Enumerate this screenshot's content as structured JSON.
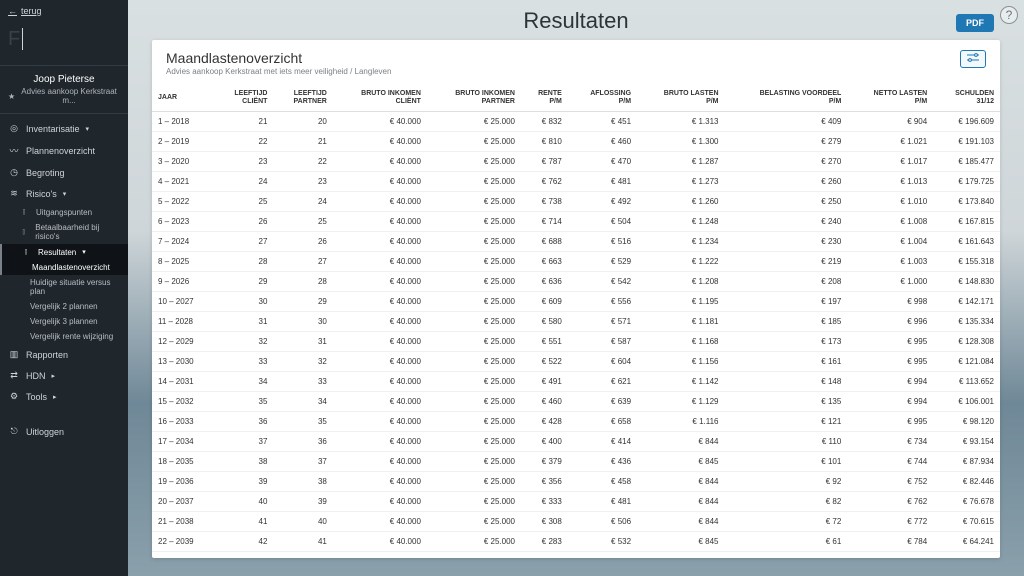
{
  "page": {
    "title": "Resultaten"
  },
  "buttons": {
    "back": "terug",
    "pdf": "PDF",
    "help": "?"
  },
  "client": {
    "name": "Joop Pieterse",
    "subtitle": "Advies aankoop Kerkstraat m..."
  },
  "sidebar": {
    "items": [
      {
        "label": "Inventarisatie",
        "icon": "◎",
        "caret": true
      },
      {
        "label": "Plannenoverzicht",
        "icon": "〰"
      },
      {
        "label": "Begroting",
        "icon": "◷"
      },
      {
        "label": "Risico's",
        "icon": "≋",
        "caret": true
      }
    ],
    "risicoSub": [
      {
        "label": "Uitgangspunten"
      },
      {
        "label": "Betaalbaarheid bij risico's"
      },
      {
        "label": "Resultaten",
        "active": true,
        "caret": true
      }
    ],
    "resultatenSub": [
      {
        "label": "Maandlastenoverzicht",
        "active": true
      },
      {
        "label": "Huidige situatie versus plan"
      },
      {
        "label": "Vergelijk 2 plannen"
      },
      {
        "label": "Vergelijk 3 plannen"
      },
      {
        "label": "Vergelijk rente wijziging"
      }
    ],
    "bottom": [
      {
        "label": "Rapporten",
        "icon": "▥"
      },
      {
        "label": "HDN",
        "icon": "⇄",
        "caret": true
      },
      {
        "label": "Tools",
        "icon": "⚙",
        "caret": true
      }
    ],
    "logout": {
      "label": "Uitloggen",
      "icon": "⎋"
    }
  },
  "panel": {
    "title": "Maandlastenoverzicht",
    "subtitle": "Advies aankoop Kerkstraat met iets meer veiligheid / Langleven",
    "actionIcon": "sliders"
  },
  "table": {
    "columns": [
      "JAAR",
      "LEEFTIJD CLIËNT",
      "LEEFTIJD PARTNER",
      "BRUTO INKOMEN CLIËNT",
      "BRUTO INKOMEN PARTNER",
      "RENTE P/M",
      "AFLOSSING P/M",
      "BRUTO LASTEN P/M",
      "BELASTING VOORDEEL P/M",
      "NETTO LASTEN P/M",
      "SCHULDEN 31/12"
    ],
    "rows": [
      [
        "1 – 2018",
        "21",
        "20",
        "€ 40.000",
        "€ 25.000",
        "€ 832",
        "€ 451",
        "€ 1.313",
        "€ 409",
        "€ 904",
        "€ 196.609"
      ],
      [
        "2 – 2019",
        "22",
        "21",
        "€ 40.000",
        "€ 25.000",
        "€ 810",
        "€ 460",
        "€ 1.300",
        "€ 279",
        "€ 1.021",
        "€ 191.103"
      ],
      [
        "3 – 2020",
        "23",
        "22",
        "€ 40.000",
        "€ 25.000",
        "€ 787",
        "€ 470",
        "€ 1.287",
        "€ 270",
        "€ 1.017",
        "€ 185.477"
      ],
      [
        "4 – 2021",
        "24",
        "23",
        "€ 40.000",
        "€ 25.000",
        "€ 762",
        "€ 481",
        "€ 1.273",
        "€ 260",
        "€ 1.013",
        "€ 179.725"
      ],
      [
        "5 – 2022",
        "25",
        "24",
        "€ 40.000",
        "€ 25.000",
        "€ 738",
        "€ 492",
        "€ 1.260",
        "€ 250",
        "€ 1.010",
        "€ 173.840"
      ],
      [
        "6 – 2023",
        "26",
        "25",
        "€ 40.000",
        "€ 25.000",
        "€ 714",
        "€ 504",
        "€ 1.248",
        "€ 240",
        "€ 1.008",
        "€ 167.815"
      ],
      [
        "7 – 2024",
        "27",
        "26",
        "€ 40.000",
        "€ 25.000",
        "€ 688",
        "€ 516",
        "€ 1.234",
        "€ 230",
        "€ 1.004",
        "€ 161.643"
      ],
      [
        "8 – 2025",
        "28",
        "27",
        "€ 40.000",
        "€ 25.000",
        "€ 663",
        "€ 529",
        "€ 1.222",
        "€ 219",
        "€ 1.003",
        "€ 155.318"
      ],
      [
        "9 – 2026",
        "29",
        "28",
        "€ 40.000",
        "€ 25.000",
        "€ 636",
        "€ 542",
        "€ 1.208",
        "€ 208",
        "€ 1.000",
        "€ 148.830"
      ],
      [
        "10 – 2027",
        "30",
        "29",
        "€ 40.000",
        "€ 25.000",
        "€ 609",
        "€ 556",
        "€ 1.195",
        "€ 197",
        "€ 998",
        "€ 142.171"
      ],
      [
        "11 – 2028",
        "31",
        "30",
        "€ 40.000",
        "€ 25.000",
        "€ 580",
        "€ 571",
        "€ 1.181",
        "€ 185",
        "€ 996",
        "€ 135.334"
      ],
      [
        "12 – 2029",
        "32",
        "31",
        "€ 40.000",
        "€ 25.000",
        "€ 551",
        "€ 587",
        "€ 1.168",
        "€ 173",
        "€ 995",
        "€ 128.308"
      ],
      [
        "13 – 2030",
        "33",
        "32",
        "€ 40.000",
        "€ 25.000",
        "€ 522",
        "€ 604",
        "€ 1.156",
        "€ 161",
        "€ 995",
        "€ 121.084"
      ],
      [
        "14 – 2031",
        "34",
        "33",
        "€ 40.000",
        "€ 25.000",
        "€ 491",
        "€ 621",
        "€ 1.142",
        "€ 148",
        "€ 994",
        "€ 113.652"
      ],
      [
        "15 – 2032",
        "35",
        "34",
        "€ 40.000",
        "€ 25.000",
        "€ 460",
        "€ 639",
        "€ 1.129",
        "€ 135",
        "€ 994",
        "€ 106.001"
      ],
      [
        "16 – 2033",
        "36",
        "35",
        "€ 40.000",
        "€ 25.000",
        "€ 428",
        "€ 658",
        "€ 1.116",
        "€ 121",
        "€ 995",
        "€ 98.120"
      ],
      [
        "17 – 2034",
        "37",
        "36",
        "€ 40.000",
        "€ 25.000",
        "€ 400",
        "€ 414",
        "€ 844",
        "€ 110",
        "€ 734",
        "€ 93.154"
      ],
      [
        "18 – 2035",
        "38",
        "37",
        "€ 40.000",
        "€ 25.000",
        "€ 379",
        "€ 436",
        "€ 845",
        "€ 101",
        "€ 744",
        "€ 87.934"
      ],
      [
        "19 – 2036",
        "39",
        "38",
        "€ 40.000",
        "€ 25.000",
        "€ 356",
        "€ 458",
        "€ 844",
        "€ 92",
        "€ 752",
        "€ 82.446"
      ],
      [
        "20 – 2037",
        "40",
        "39",
        "€ 40.000",
        "€ 25.000",
        "€ 333",
        "€ 481",
        "€ 844",
        "€ 82",
        "€ 762",
        "€ 76.678"
      ],
      [
        "21 – 2038",
        "41",
        "40",
        "€ 40.000",
        "€ 25.000",
        "€ 308",
        "€ 506",
        "€ 844",
        "€ 72",
        "€ 772",
        "€ 70.615"
      ],
      [
        "22 – 2039",
        "42",
        "41",
        "€ 40.000",
        "€ 25.000",
        "€ 283",
        "€ 532",
        "€ 845",
        "€ 61",
        "€ 784",
        "€ 64.241"
      ]
    ]
  }
}
